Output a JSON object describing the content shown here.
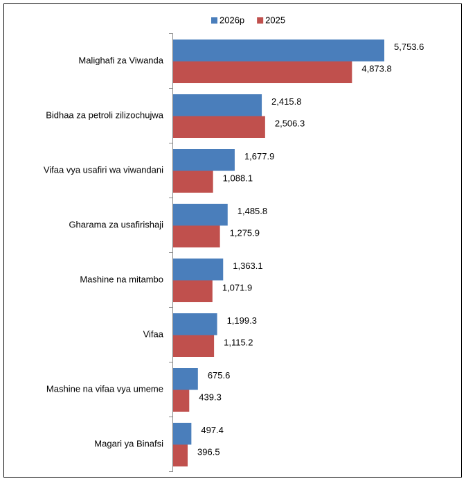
{
  "chart_data": {
    "type": "bar",
    "orientation": "horizontal",
    "categories": [
      "Malighafi za Viwanda",
      "Bidhaa za petroli zilizochujwa",
      "Vifaa vya usafiri wa viwandani",
      "Gharama za usafirishaji",
      "Mashine na mitambo",
      "Vifaa",
      "Mashine na vifaa vya umeme",
      "Magari ya Binafsi"
    ],
    "series": [
      {
        "name": "2026p",
        "color": "#4a7ebb",
        "values": [
          5753.6,
          2415.8,
          1677.9,
          1485.8,
          1363.1,
          1199.3,
          675.6,
          497.4
        ],
        "value_labels": [
          "5,753.6",
          "2,415.8",
          "1,677.9",
          "1,485.8",
          "1,363.1",
          "1,199.3",
          "675.6",
          "497.4"
        ]
      },
      {
        "name": "2025",
        "color": "#c0504d",
        "values": [
          4873.8,
          2506.3,
          1088.1,
          1275.9,
          1071.9,
          1115.2,
          439.3,
          396.5
        ],
        "value_labels": [
          "4,873.8",
          "2,506.3",
          "1,088.1",
          "1,275.9",
          "1,071.9",
          "1,115.2",
          "439.3",
          "396.5"
        ]
      }
    ],
    "legend": "top"
  }
}
